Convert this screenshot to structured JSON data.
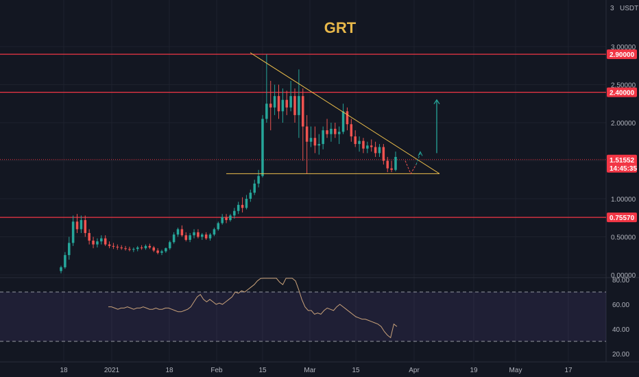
{
  "chart_data": [
    {
      "type": "candlestick",
      "title": "GRT",
      "currency": "USDT",
      "scale_label": "3",
      "ylim": [
        0,
        3.15
      ],
      "y_ticks": [
        "3.00000",
        "2.50000",
        "2.00000",
        "1.00000",
        "0.50000",
        "0.00000"
      ],
      "x_ticks": [
        "18",
        "2021",
        "18",
        "Feb",
        "15",
        "Mar",
        "15",
        "Apr",
        "19",
        "May",
        "17"
      ],
      "grid": true,
      "horizontal_levels": [
        {
          "value": 2.9,
          "label": "2.90000",
          "color": "#f23645"
        },
        {
          "value": 2.4,
          "label": "2.40000",
          "color": "#f23645"
        },
        {
          "value": 0.7557,
          "label": "0.75570",
          "color": "#f23645"
        }
      ],
      "last_price": {
        "value": 1.51552,
        "label": "1.51552",
        "countdown": "14:45:35",
        "color": "#f23645"
      },
      "triangle": {
        "apex_high": 2.92,
        "base": 1.33,
        "color": "#f0c14b"
      },
      "projection_target": 1.6,
      "up_arrow": {
        "from": 1.6,
        "to": 2.3,
        "color": "#26a69a"
      },
      "candles": [
        [
          0.05,
          0.12,
          0.02,
          0.1
        ],
        [
          0.1,
          0.3,
          0.08,
          0.26
        ],
        [
          0.26,
          0.5,
          0.2,
          0.42
        ],
        [
          0.42,
          0.78,
          0.38,
          0.7
        ],
        [
          0.7,
          0.8,
          0.55,
          0.6
        ],
        [
          0.6,
          0.78,
          0.55,
          0.72
        ],
        [
          0.72,
          0.78,
          0.5,
          0.55
        ],
        [
          0.55,
          0.6,
          0.4,
          0.45
        ],
        [
          0.45,
          0.5,
          0.35,
          0.4
        ],
        [
          0.4,
          0.48,
          0.36,
          0.44
        ],
        [
          0.44,
          0.52,
          0.4,
          0.48
        ],
        [
          0.48,
          0.52,
          0.38,
          0.4
        ],
        [
          0.4,
          0.44,
          0.35,
          0.38
        ],
        [
          0.38,
          0.42,
          0.34,
          0.37
        ],
        [
          0.37,
          0.4,
          0.33,
          0.36
        ],
        [
          0.36,
          0.39,
          0.33,
          0.35
        ],
        [
          0.35,
          0.38,
          0.32,
          0.34
        ],
        [
          0.34,
          0.37,
          0.31,
          0.33
        ],
        [
          0.33,
          0.36,
          0.3,
          0.34
        ],
        [
          0.34,
          0.38,
          0.31,
          0.36
        ],
        [
          0.36,
          0.39,
          0.33,
          0.35
        ],
        [
          0.35,
          0.4,
          0.33,
          0.38
        ],
        [
          0.38,
          0.41,
          0.34,
          0.36
        ],
        [
          0.36,
          0.38,
          0.3,
          0.32
        ],
        [
          0.32,
          0.35,
          0.27,
          0.29
        ],
        [
          0.29,
          0.33,
          0.26,
          0.31
        ],
        [
          0.31,
          0.36,
          0.29,
          0.35
        ],
        [
          0.35,
          0.45,
          0.33,
          0.43
        ],
        [
          0.43,
          0.56,
          0.41,
          0.53
        ],
        [
          0.53,
          0.62,
          0.5,
          0.6
        ],
        [
          0.6,
          0.65,
          0.5,
          0.52
        ],
        [
          0.52,
          0.56,
          0.44,
          0.46
        ],
        [
          0.46,
          0.55,
          0.43,
          0.52
        ],
        [
          0.52,
          0.6,
          0.48,
          0.56
        ],
        [
          0.56,
          0.6,
          0.48,
          0.5
        ],
        [
          0.5,
          0.55,
          0.46,
          0.53
        ],
        [
          0.53,
          0.56,
          0.46,
          0.48
        ],
        [
          0.48,
          0.55,
          0.45,
          0.53
        ],
        [
          0.53,
          0.62,
          0.51,
          0.6
        ],
        [
          0.6,
          0.7,
          0.58,
          0.68
        ],
        [
          0.68,
          0.8,
          0.66,
          0.76
        ],
        [
          0.76,
          0.8,
          0.68,
          0.72
        ],
        [
          0.72,
          0.8,
          0.7,
          0.78
        ],
        [
          0.78,
          0.88,
          0.74,
          0.84
        ],
        [
          0.84,
          0.96,
          0.8,
          0.92
        ],
        [
          0.92,
          1.02,
          0.82,
          0.88
        ],
        [
          0.88,
          1.05,
          0.86,
          1.0
        ],
        [
          1.0,
          1.12,
          0.96,
          1.08
        ],
        [
          1.08,
          1.25,
          1.05,
          1.2
        ],
        [
          1.2,
          1.38,
          1.15,
          1.3
        ],
        [
          1.3,
          2.1,
          1.28,
          2.05
        ],
        [
          2.05,
          2.9,
          2.0,
          2.25
        ],
        [
          2.25,
          2.55,
          1.9,
          2.2
        ],
        [
          2.2,
          2.5,
          2.1,
          2.35
        ],
        [
          2.35,
          2.5,
          2.05,
          2.15
        ],
        [
          2.15,
          2.45,
          2.0,
          2.3
        ],
        [
          2.3,
          2.42,
          2.1,
          2.2
        ],
        [
          2.2,
          2.55,
          2.15,
          2.35
        ],
        [
          2.35,
          2.45,
          2.0,
          2.1
        ],
        [
          2.1,
          2.7,
          1.8,
          2.35
        ],
        [
          2.35,
          2.45,
          1.5,
          1.95
        ],
        [
          1.95,
          2.1,
          1.33,
          1.75
        ],
        [
          1.75,
          1.95,
          1.68,
          1.8
        ],
        [
          1.8,
          1.95,
          1.6,
          1.7
        ],
        [
          1.7,
          1.85,
          1.58,
          1.72
        ],
        [
          1.72,
          1.95,
          1.65,
          1.9
        ],
        [
          1.9,
          2.05,
          1.8,
          1.85
        ],
        [
          1.85,
          2.0,
          1.75,
          1.92
        ],
        [
          1.92,
          2.0,
          1.8,
          1.85
        ],
        [
          1.85,
          1.95,
          1.72,
          1.88
        ],
        [
          1.88,
          2.25,
          1.85,
          2.15
        ],
        [
          2.15,
          2.2,
          1.9,
          1.98
        ],
        [
          1.98,
          2.05,
          1.75,
          1.82
        ],
        [
          1.82,
          1.9,
          1.68,
          1.72
        ],
        [
          1.72,
          1.82,
          1.62,
          1.76
        ],
        [
          1.76,
          1.8,
          1.6,
          1.66
        ],
        [
          1.66,
          1.75,
          1.6,
          1.7
        ],
        [
          1.7,
          1.78,
          1.62,
          1.68
        ],
        [
          1.68,
          1.75,
          1.55,
          1.6
        ],
        [
          1.6,
          1.72,
          1.55,
          1.68
        ],
        [
          1.68,
          1.72,
          1.45,
          1.5
        ],
        [
          1.5,
          1.55,
          1.35,
          1.4
        ],
        [
          1.4,
          1.5,
          1.35,
          1.38
        ],
        [
          1.38,
          1.62,
          1.36,
          1.55
        ]
      ]
    },
    {
      "type": "line",
      "indicator": "RSI",
      "ylim": [
        20,
        85
      ],
      "y_ticks": [
        "80.00",
        "60.00",
        "40.00",
        "20.00"
      ],
      "bands": [
        70,
        30
      ],
      "band_color": "#7e57c2",
      "line_color": "#c9a27a",
      "values": [
        58,
        58,
        57,
        56,
        57,
        57,
        58,
        57,
        56,
        57,
        57,
        58,
        57,
        56,
        56,
        57,
        56,
        56,
        57,
        57,
        56,
        55,
        54,
        54,
        55,
        56,
        58,
        62,
        66,
        68,
        64,
        62,
        64,
        62,
        60,
        61,
        60,
        62,
        64,
        66,
        70,
        69,
        71,
        70,
        72,
        74,
        76,
        79,
        81,
        84,
        86,
        86,
        84,
        82,
        78,
        76,
        82,
        84,
        82,
        79,
        72,
        64,
        58,
        55,
        55,
        52,
        53,
        52,
        55,
        57,
        56,
        55,
        58,
        60,
        58,
        56,
        54,
        52,
        50,
        49,
        48,
        48,
        47,
        46,
        45,
        44,
        42,
        38,
        35,
        33,
        44,
        42
      ]
    }
  ]
}
